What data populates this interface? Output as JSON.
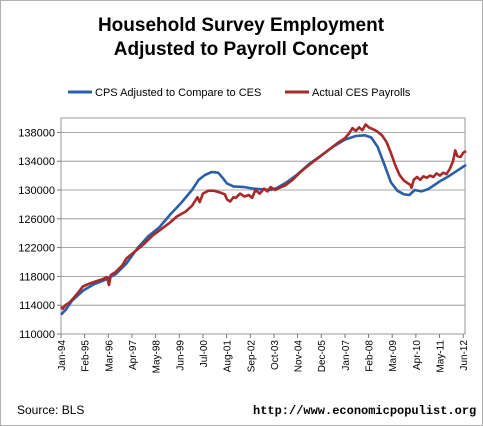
{
  "chart_data": {
    "type": "line",
    "title": [
      "Household Survey Employment",
      "Adjusted to Payroll Concept"
    ],
    "xlabel": "",
    "ylabel": "",
    "ylim": [
      110000,
      140000
    ],
    "yticks": [
      110000,
      114000,
      118000,
      122000,
      126000,
      130000,
      134000,
      138000
    ],
    "ytick_labels": [
      "110000",
      "114000",
      "118000",
      "122000",
      "126000",
      "130000",
      "134000",
      "138000"
    ],
    "xlim": [
      1994.0,
      2012.5
    ],
    "xticks": [
      1994.0,
      1995.083,
      1996.167,
      1997.25,
      1998.333,
      1999.417,
      2000.5,
      2001.583,
      2002.667,
      2003.75,
      2004.833,
      2005.917,
      2007.0,
      2008.083,
      2009.167,
      2010.25,
      2011.333,
      2012.417
    ],
    "xtick_labels": [
      "Jan-94",
      "Feb-95",
      "Mar-96",
      "Apr-97",
      "May-98",
      "Jun-99",
      "Jul-00",
      "Aug-01",
      "Sep-02",
      "Oct-03",
      "Nov-04",
      "Dec-05",
      "Jan-07",
      "Feb-08",
      "Mar-09",
      "Apr-10",
      "May-11",
      "Jun-12"
    ],
    "grid": "horizontal",
    "legend": "top",
    "series": [
      {
        "name": "CPS Adjusted to Compare to CES",
        "color": "#2a5fa8",
        "points": [
          [
            1994.0,
            112700
          ],
          [
            1994.2,
            113300
          ],
          [
            1994.5,
            114600
          ],
          [
            1995.0,
            116000
          ],
          [
            1995.5,
            116900
          ],
          [
            1996.0,
            117500
          ],
          [
            1996.5,
            118300
          ],
          [
            1997.0,
            119800
          ],
          [
            1997.5,
            121900
          ],
          [
            1998.0,
            123600
          ],
          [
            1998.5,
            124800
          ],
          [
            1999.0,
            126600
          ],
          [
            1999.5,
            128200
          ],
          [
            2000.0,
            130000
          ],
          [
            2000.3,
            131400
          ],
          [
            2000.6,
            132100
          ],
          [
            2000.9,
            132500
          ],
          [
            2001.2,
            132400
          ],
          [
            2001.4,
            131700
          ],
          [
            2001.6,
            130900
          ],
          [
            2001.9,
            130500
          ],
          [
            2002.4,
            130400
          ],
          [
            2002.8,
            130200
          ],
          [
            2003.2,
            130100
          ],
          [
            2003.6,
            130000
          ],
          [
            2003.9,
            130300
          ],
          [
            2004.3,
            131000
          ],
          [
            2004.8,
            132100
          ],
          [
            2005.4,
            133700
          ],
          [
            2006.0,
            135000
          ],
          [
            2006.5,
            136100
          ],
          [
            2007.0,
            137000
          ],
          [
            2007.5,
            137500
          ],
          [
            2007.9,
            137600
          ],
          [
            2008.2,
            137300
          ],
          [
            2008.5,
            136000
          ],
          [
            2008.8,
            133600
          ],
          [
            2009.1,
            131100
          ],
          [
            2009.4,
            129900
          ],
          [
            2009.7,
            129400
          ],
          [
            2009.95,
            129300
          ],
          [
            2010.2,
            130000
          ],
          [
            2010.5,
            129800
          ],
          [
            2010.8,
            130100
          ],
          [
            2011.1,
            130700
          ],
          [
            2011.4,
            131300
          ],
          [
            2011.7,
            131800
          ],
          [
            2012.0,
            132400
          ],
          [
            2012.3,
            133000
          ],
          [
            2012.55,
            133500
          ]
        ]
      },
      {
        "name": "Actual CES Payrolls",
        "color": "#a62a2a",
        "points": [
          [
            1994.0,
            113800
          ],
          [
            1994.08,
            113500
          ],
          [
            1994.2,
            114000
          ],
          [
            1994.4,
            114400
          ],
          [
            1994.6,
            115100
          ],
          [
            1994.8,
            115800
          ],
          [
            1995.0,
            116600
          ],
          [
            1995.3,
            117000
          ],
          [
            1995.6,
            117300
          ],
          [
            1995.9,
            117600
          ],
          [
            1996.1,
            117900
          ],
          [
            1996.2,
            116800
          ],
          [
            1996.28,
            118200
          ],
          [
            1996.5,
            118600
          ],
          [
            1996.8,
            119500
          ],
          [
            1997.0,
            120500
          ],
          [
            1997.4,
            121500
          ],
          [
            1997.8,
            122500
          ],
          [
            1998.2,
            123700
          ],
          [
            1998.6,
            124600
          ],
          [
            1999.0,
            125500
          ],
          [
            1999.3,
            126300
          ],
          [
            1999.7,
            127000
          ],
          [
            2000.0,
            127800
          ],
          [
            2000.25,
            129000
          ],
          [
            2000.35,
            128300
          ],
          [
            2000.5,
            129500
          ],
          [
            2000.75,
            129900
          ],
          [
            2001.0,
            129900
          ],
          [
            2001.25,
            129700
          ],
          [
            2001.5,
            129400
          ],
          [
            2001.6,
            128700
          ],
          [
            2001.75,
            128400
          ],
          [
            2001.9,
            129000
          ],
          [
            2002.0,
            128900
          ],
          [
            2002.2,
            129500
          ],
          [
            2002.4,
            129100
          ],
          [
            2002.6,
            129300
          ],
          [
            2002.75,
            128900
          ],
          [
            2002.9,
            130000
          ],
          [
            2003.1,
            129500
          ],
          [
            2003.3,
            130200
          ],
          [
            2003.45,
            129800
          ],
          [
            2003.6,
            130400
          ],
          [
            2003.8,
            130000
          ],
          [
            2004.0,
            130300
          ],
          [
            2004.3,
            130700
          ],
          [
            2004.6,
            131400
          ],
          [
            2004.9,
            132300
          ],
          [
            2005.2,
            133100
          ],
          [
            2005.5,
            133800
          ],
          [
            2005.8,
            134500
          ],
          [
            2006.1,
            135200
          ],
          [
            2006.4,
            135900
          ],
          [
            2006.7,
            136600
          ],
          [
            2007.0,
            137200
          ],
          [
            2007.2,
            137900
          ],
          [
            2007.35,
            138600
          ],
          [
            2007.5,
            138200
          ],
          [
            2007.65,
            138700
          ],
          [
            2007.8,
            138300
          ],
          [
            2007.95,
            139100
          ],
          [
            2008.1,
            138700
          ],
          [
            2008.25,
            138500
          ],
          [
            2008.45,
            138200
          ],
          [
            2008.7,
            137600
          ],
          [
            2008.9,
            136700
          ],
          [
            2009.1,
            135200
          ],
          [
            2009.3,
            133500
          ],
          [
            2009.5,
            132100
          ],
          [
            2009.7,
            131300
          ],
          [
            2009.9,
            130900
          ],
          [
            2010.0,
            130700
          ],
          [
            2010.05,
            130300
          ],
          [
            2010.15,
            131400
          ],
          [
            2010.3,
            131800
          ],
          [
            2010.45,
            131400
          ],
          [
            2010.6,
            131900
          ],
          [
            2010.75,
            131700
          ],
          [
            2010.9,
            132000
          ],
          [
            2011.05,
            131800
          ],
          [
            2011.2,
            132300
          ],
          [
            2011.35,
            132000
          ],
          [
            2011.5,
            132400
          ],
          [
            2011.65,
            132200
          ],
          [
            2011.8,
            132900
          ],
          [
            2011.95,
            134000
          ],
          [
            2012.05,
            135500
          ],
          [
            2012.15,
            134700
          ],
          [
            2012.3,
            134600
          ],
          [
            2012.42,
            135200
          ],
          [
            2012.55,
            135400
          ]
        ]
      }
    ]
  },
  "footer": {
    "source": "Source:  BLS",
    "url": "http://www.economicpopulist.org"
  }
}
